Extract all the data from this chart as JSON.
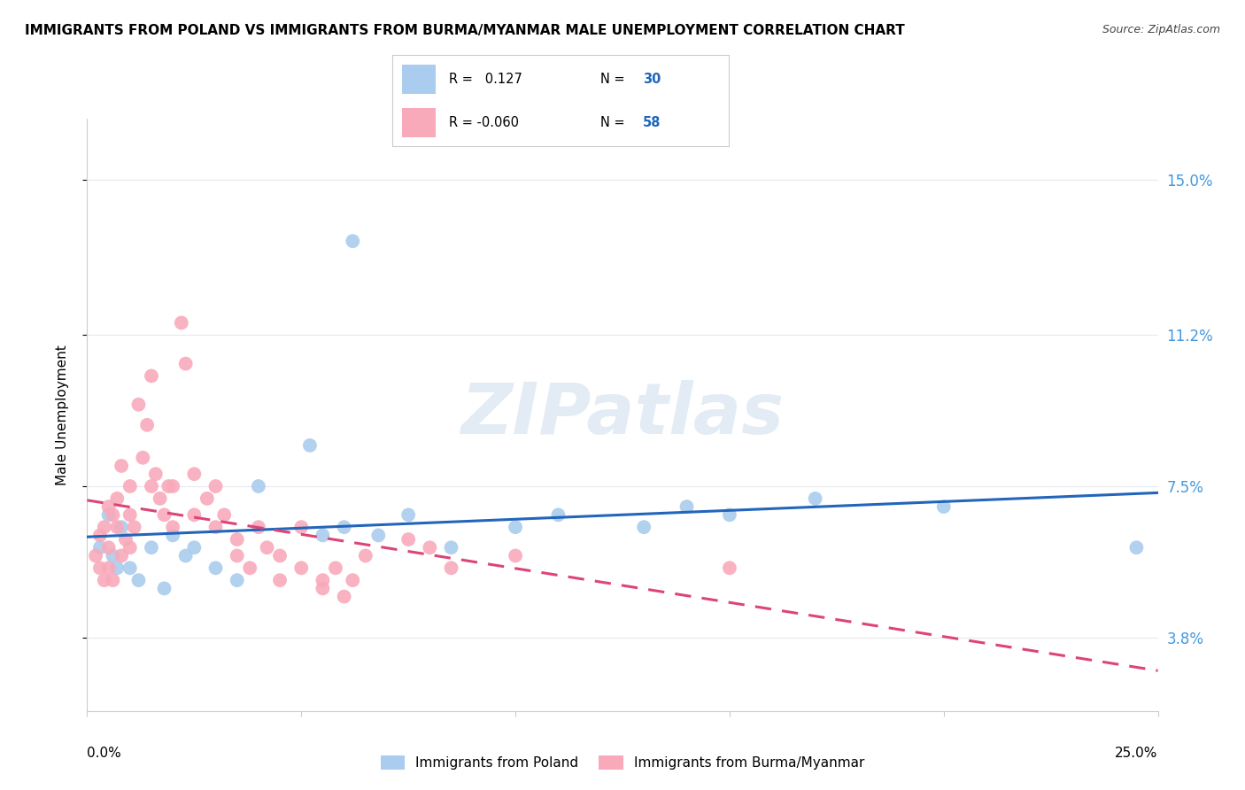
{
  "title": "IMMIGRANTS FROM POLAND VS IMMIGRANTS FROM BURMA/MYANMAR MALE UNEMPLOYMENT CORRELATION CHART",
  "source": "Source: ZipAtlas.com",
  "xlabel_bottom_left": "0.0%",
  "xlabel_bottom_right": "25.0%",
  "ylabel": "Male Unemployment",
  "ytick_labels": [
    "3.8%",
    "7.5%",
    "11.2%",
    "15.0%"
  ],
  "ytick_values": [
    3.8,
    7.5,
    11.2,
    15.0
  ],
  "xlim": [
    0.0,
    25.0
  ],
  "ylim": [
    2.0,
    16.5
  ],
  "watermark": "ZIPatlas",
  "poland_scatter": [
    [
      0.3,
      6.0
    ],
    [
      0.5,
      6.8
    ],
    [
      0.6,
      5.8
    ],
    [
      0.7,
      5.5
    ],
    [
      0.8,
      6.5
    ],
    [
      1.0,
      5.5
    ],
    [
      1.2,
      5.2
    ],
    [
      1.5,
      6.0
    ],
    [
      1.8,
      5.0
    ],
    [
      2.0,
      6.3
    ],
    [
      2.3,
      5.8
    ],
    [
      2.5,
      6.0
    ],
    [
      3.0,
      5.5
    ],
    [
      3.5,
      5.2
    ],
    [
      4.0,
      7.5
    ],
    [
      5.2,
      8.5
    ],
    [
      5.5,
      6.3
    ],
    [
      6.0,
      6.5
    ],
    [
      6.2,
      13.5
    ],
    [
      6.8,
      6.3
    ],
    [
      7.5,
      6.8
    ],
    [
      8.5,
      6.0
    ],
    [
      10.0,
      6.5
    ],
    [
      11.0,
      6.8
    ],
    [
      13.0,
      6.5
    ],
    [
      14.0,
      7.0
    ],
    [
      15.0,
      6.8
    ],
    [
      17.0,
      7.2
    ],
    [
      20.0,
      7.0
    ],
    [
      24.5,
      6.0
    ]
  ],
  "burma_scatter": [
    [
      0.2,
      5.8
    ],
    [
      0.3,
      6.3
    ],
    [
      0.3,
      5.5
    ],
    [
      0.4,
      6.5
    ],
    [
      0.4,
      5.2
    ],
    [
      0.5,
      7.0
    ],
    [
      0.5,
      5.5
    ],
    [
      0.5,
      6.0
    ],
    [
      0.6,
      6.8
    ],
    [
      0.6,
      5.2
    ],
    [
      0.7,
      7.2
    ],
    [
      0.7,
      6.5
    ],
    [
      0.8,
      8.0
    ],
    [
      0.8,
      5.8
    ],
    [
      0.9,
      6.2
    ],
    [
      1.0,
      7.5
    ],
    [
      1.0,
      6.8
    ],
    [
      1.0,
      6.0
    ],
    [
      1.1,
      6.5
    ],
    [
      1.2,
      9.5
    ],
    [
      1.3,
      8.2
    ],
    [
      1.4,
      9.0
    ],
    [
      1.5,
      10.2
    ],
    [
      1.5,
      7.5
    ],
    [
      1.6,
      7.8
    ],
    [
      1.7,
      7.2
    ],
    [
      1.8,
      6.8
    ],
    [
      1.9,
      7.5
    ],
    [
      2.0,
      7.5
    ],
    [
      2.0,
      6.5
    ],
    [
      2.2,
      11.5
    ],
    [
      2.3,
      10.5
    ],
    [
      2.5,
      7.8
    ],
    [
      2.5,
      6.8
    ],
    [
      2.8,
      7.2
    ],
    [
      3.0,
      7.5
    ],
    [
      3.0,
      6.5
    ],
    [
      3.2,
      6.8
    ],
    [
      3.5,
      6.2
    ],
    [
      3.5,
      5.8
    ],
    [
      3.8,
      5.5
    ],
    [
      4.0,
      6.5
    ],
    [
      4.2,
      6.0
    ],
    [
      4.5,
      5.8
    ],
    [
      4.5,
      5.2
    ],
    [
      5.0,
      6.5
    ],
    [
      5.0,
      5.5
    ],
    [
      5.5,
      5.2
    ],
    [
      5.5,
      5.0
    ],
    [
      5.8,
      5.5
    ],
    [
      6.0,
      4.8
    ],
    [
      6.2,
      5.2
    ],
    [
      6.5,
      5.8
    ],
    [
      7.5,
      6.2
    ],
    [
      8.0,
      6.0
    ],
    [
      8.5,
      5.5
    ],
    [
      10.0,
      5.8
    ],
    [
      15.0,
      5.5
    ]
  ],
  "poland_line_color": "#2266bb",
  "burma_line_color": "#dd4477",
  "scatter_blue": "#aaccee",
  "scatter_pink": "#f8aabb",
  "grid_color": "#e8e8f0",
  "background_color": "#ffffff",
  "title_fontsize": 11,
  "axis_label_fontsize": 11,
  "tick_fontsize": 11,
  "right_tick_color": "#4499dd",
  "legend_R1": "R =   0.127",
  "legend_N1": "30",
  "legend_R2": "R = -0.060",
  "legend_N2": "58"
}
